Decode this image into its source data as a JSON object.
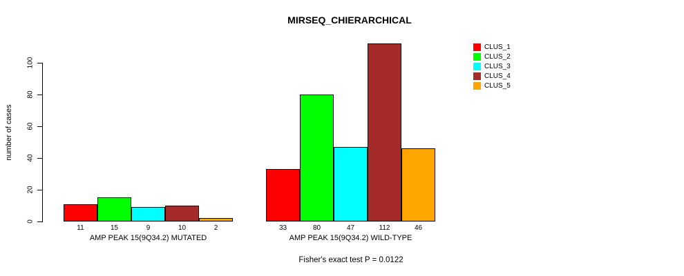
{
  "chart_data": {
    "type": "bar",
    "title": "MIRSEQ_CHIERARCHICAL",
    "ylabel": "number of cases",
    "xlabel": "",
    "yticks": [
      0,
      20,
      40,
      60,
      80,
      100
    ],
    "ylim": [
      0,
      115
    ],
    "grid": false,
    "legend_position": "right-outside",
    "legend": [
      {
        "label": "CLUS_1",
        "color": "#ff0000"
      },
      {
        "label": "CLUS_2",
        "color": "#00ff00"
      },
      {
        "label": "CLUS_3",
        "color": "#00ffff"
      },
      {
        "label": "CLUS_4",
        "color": "#a52a2a"
      },
      {
        "label": "CLUS_5",
        "color": "#ffa500"
      }
    ],
    "categories": [
      "AMP PEAK 15(9Q34.2) MUTATED",
      "AMP PEAK 15(9Q34.2) WILD-TYPE"
    ],
    "series": [
      {
        "name": "CLUS_1",
        "values": [
          11,
          33
        ]
      },
      {
        "name": "CLUS_2",
        "values": [
          15,
          80
        ]
      },
      {
        "name": "CLUS_3",
        "values": [
          9,
          47
        ]
      },
      {
        "name": "CLUS_4",
        "values": [
          10,
          112
        ]
      },
      {
        "name": "CLUS_5",
        "values": [
          2,
          46
        ]
      }
    ],
    "groups": [
      {
        "label": "AMP PEAK 15(9Q34.2) MUTATED",
        "values": [
          11,
          15,
          9,
          10,
          2
        ]
      },
      {
        "label": "AMP PEAK 15(9Q34.2) WILD-TYPE",
        "values": [
          33,
          80,
          47,
          112,
          46
        ]
      }
    ],
    "bar_value_labels_shown": true,
    "footnote": "Fisher's exact test P = 0.0122",
    "colors": {
      "background": "#ffffff",
      "axis": "#000000",
      "text": "#000000"
    }
  }
}
